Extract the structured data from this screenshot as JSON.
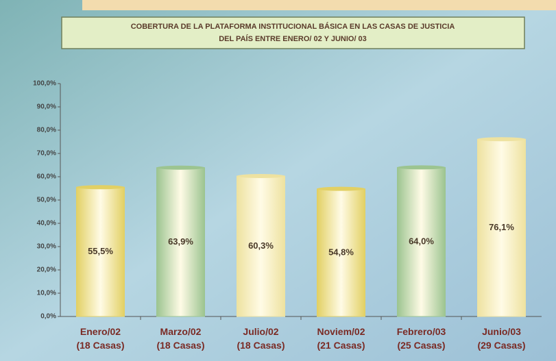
{
  "chart_data": {
    "type": "bar",
    "title": [
      "COBERTURA DE LA PLATAFORMA INSTITUCIONAL BÁSICA EN LAS CASAS DE JUSTICIA",
      "DEL PAÍS ENTRE ENERO/ 02 Y JUNIO/ 03"
    ],
    "categories": [
      "Enero/02\n(18 Casas)",
      "Marzo/02\n(18 Casas)",
      "Julio/02\n(18 Casas)",
      "Noviem/02\n(21 Casas)",
      "Febrero/03\n(25 Casas)",
      "Junio/03\n(29 Casas)"
    ],
    "values": [
      55.5,
      63.9,
      60.3,
      54.8,
      64.0,
      76.1
    ],
    "value_labels": [
      "55,5%",
      "63,9%",
      "60,3%",
      "54,8%",
      "64,0%",
      "76,1%"
    ],
    "colors": [
      "#e2d064",
      "#9cc490",
      "#eee2a0",
      "#e2d064",
      "#9cc490",
      "#eee2a0"
    ],
    "ylim": [
      0,
      100
    ],
    "yticks": [
      {
        "value": 0,
        "label": "0,0%"
      },
      {
        "value": 10,
        "label": "10,0%"
      },
      {
        "value": 20,
        "label": "20,0%"
      },
      {
        "value": 30,
        "label": "30,0%"
      },
      {
        "value": 40,
        "label": "40,0%"
      },
      {
        "value": 50,
        "label": "50,0%"
      },
      {
        "value": 60,
        "label": "60,0%"
      },
      {
        "value": 70,
        "label": "70,0%"
      },
      {
        "value": 80,
        "label": "80,0%"
      },
      {
        "value": 90,
        "label": "90,0%"
      },
      {
        "value": 100,
        "label": "100,0%"
      }
    ]
  }
}
